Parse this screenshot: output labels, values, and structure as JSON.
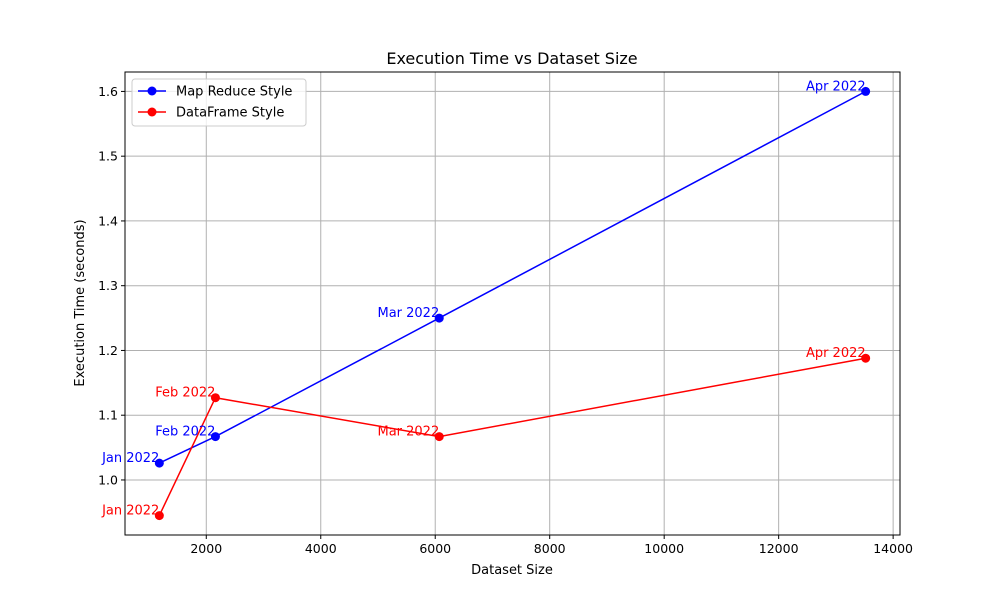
{
  "chart_data": {
    "type": "line",
    "title": "Execution Time vs Dataset Size",
    "xlabel": "Dataset Size",
    "ylabel": "Execution Time (seconds)",
    "xlim": [
      580,
      14120
    ],
    "ylim": [
      0.915,
      1.63
    ],
    "xticks": [
      2000,
      4000,
      6000,
      8000,
      10000,
      12000,
      14000
    ],
    "yticks": [
      1.0,
      1.1,
      1.2,
      1.3,
      1.4,
      1.5,
      1.6
    ],
    "grid": true,
    "legend_position": "top-left",
    "series": [
      {
        "name": "Map Reduce Style",
        "color": "#0000ff",
        "x": [
          1180,
          2160,
          6070,
          13520
        ],
        "y": [
          1.026,
          1.067,
          1.25,
          1.6
        ],
        "labels": [
          "Jan 2022",
          "Feb 2022",
          "Mar 2022",
          "Apr 2022"
        ]
      },
      {
        "name": "DataFrame Style",
        "color": "#ff0000",
        "x": [
          1180,
          2160,
          6070,
          13520
        ],
        "y": [
          0.945,
          1.127,
          1.067,
          1.188
        ],
        "labels": [
          "Jan 2022",
          "Feb 2022",
          "Mar 2022",
          "Apr 2022"
        ]
      }
    ]
  }
}
